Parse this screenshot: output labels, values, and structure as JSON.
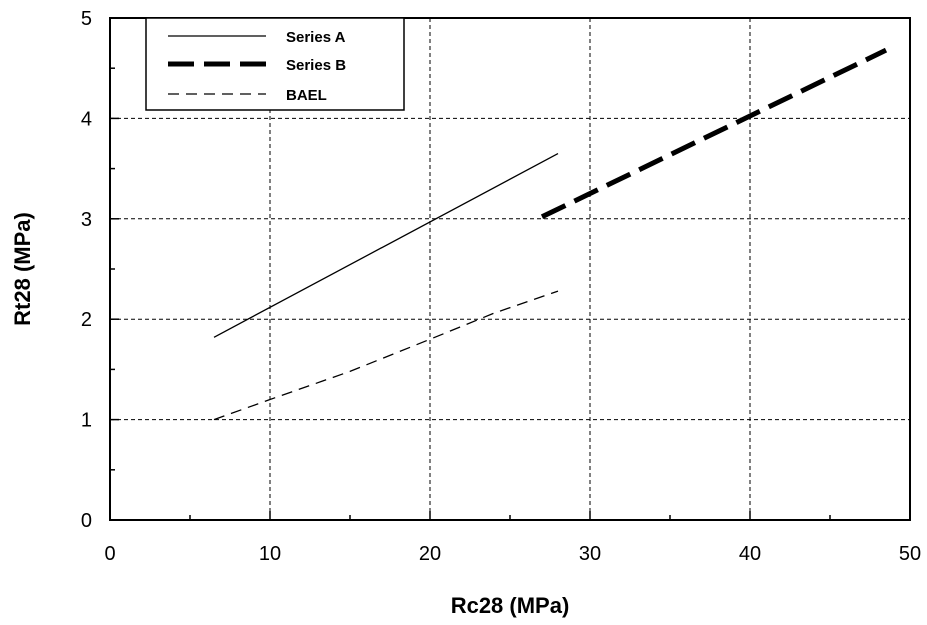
{
  "chart_data": {
    "type": "line",
    "xlabel": "Rc28 (MPa)",
    "ylabel": "Rt28 (MPa)",
    "xlim": [
      0,
      50
    ],
    "ylim": [
      0,
      5
    ],
    "x_ticks": [
      0,
      10,
      20,
      30,
      40,
      50
    ],
    "y_ticks": [
      0,
      1,
      2,
      3,
      4,
      5
    ],
    "grid": true,
    "legend_position": "top-left",
    "series": [
      {
        "name": "Series A",
        "style": "solid-thin",
        "color": "#000000",
        "x": [
          6.5,
          28.0
        ],
        "y": [
          1.82,
          3.65
        ]
      },
      {
        "name": "Series B",
        "style": "dashed-thick",
        "color": "#000000",
        "x": [
          27.0,
          48.5
        ],
        "y": [
          3.02,
          4.68
        ]
      },
      {
        "name": "BAEL",
        "style": "dashed-thin",
        "color": "#000000",
        "x": [
          6.5,
          10.0,
          15.0,
          20.0,
          24.0,
          28.0
        ],
        "y": [
          1.0,
          1.2,
          1.48,
          1.8,
          2.06,
          2.28
        ]
      }
    ]
  }
}
